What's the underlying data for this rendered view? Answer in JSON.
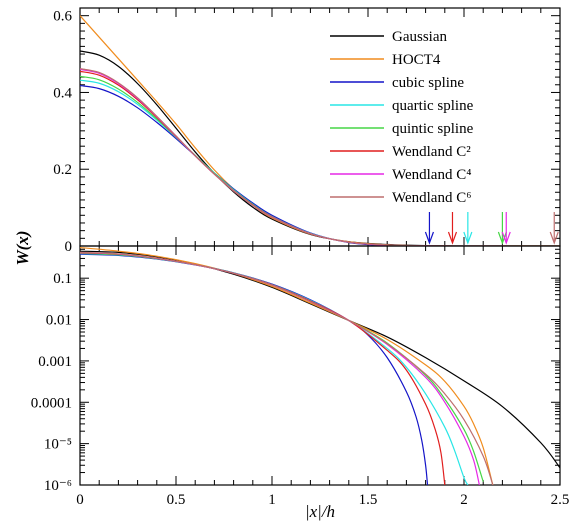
{
  "chart_data": [
    {
      "type": "line",
      "panel": "top",
      "ylabel": "W(x)",
      "xlim": [
        0,
        2.5
      ],
      "ylim": [
        0,
        0.62
      ],
      "yticks": [
        {
          "value": 0,
          "label": "0"
        },
        {
          "value": 0.2,
          "label": "0.2"
        },
        {
          "value": 0.4,
          "label": "0.4"
        },
        {
          "value": 0.6,
          "label": "0.6"
        }
      ],
      "legend_position": "top-right",
      "series": [
        {
          "name": "Gaussian",
          "color": "#000000",
          "x": [
            0,
            0.1,
            0.2,
            0.3,
            0.4,
            0.5,
            0.6,
            0.7,
            0.8,
            0.9,
            1.0,
            1.2,
            1.4,
            1.6,
            1.8,
            2.0,
            2.5
          ],
          "y": [
            0.508,
            0.497,
            0.468,
            0.423,
            0.368,
            0.307,
            0.245,
            0.189,
            0.141,
            0.101,
            0.07,
            0.03,
            0.011,
            0.004,
            0.001,
            0.0,
            0.0
          ]
        },
        {
          "name": "HOCT4",
          "color": "#f08c1e",
          "x": [
            0,
            0.1,
            0.2,
            0.3,
            0.4,
            0.5,
            0.6,
            0.7,
            0.8,
            0.9,
            1.0,
            1.2,
            1.4,
            1.6,
            1.8,
            2.0,
            2.5
          ],
          "y": [
            0.6,
            0.544,
            0.488,
            0.432,
            0.376,
            0.318,
            0.256,
            0.198,
            0.148,
            0.106,
            0.073,
            0.031,
            0.011,
            0.003,
            0.0005,
            0.0,
            0.0
          ]
        },
        {
          "name": "cubic spline",
          "color": "#1414c8",
          "x": [
            0,
            0.1,
            0.2,
            0.3,
            0.4,
            0.5,
            0.6,
            0.7,
            0.8,
            0.9,
            1.0,
            1.2,
            1.4,
            1.6,
            1.8,
            1.82
          ],
          "y": [
            0.418,
            0.41,
            0.39,
            0.36,
            0.322,
            0.28,
            0.235,
            0.19,
            0.149,
            0.112,
            0.08,
            0.034,
            0.009,
            0.001,
            0.0,
            0.0
          ]
        },
        {
          "name": "quartic spline",
          "color": "#28e6e6",
          "x": [
            0,
            0.1,
            0.2,
            0.3,
            0.4,
            0.5,
            0.6,
            0.7,
            0.8,
            0.9,
            1.0,
            1.2,
            1.4,
            1.6,
            1.8,
            2.02
          ],
          "y": [
            0.432,
            0.424,
            0.402,
            0.369,
            0.328,
            0.283,
            0.236,
            0.19,
            0.147,
            0.109,
            0.077,
            0.033,
            0.01,
            0.002,
            0.0,
            0.0
          ]
        },
        {
          "name": "quintic spline",
          "color": "#46d646",
          "x": [
            0,
            0.1,
            0.2,
            0.3,
            0.4,
            0.5,
            0.6,
            0.7,
            0.8,
            0.9,
            1.0,
            1.2,
            1.4,
            1.6,
            1.8,
            2.0,
            2.2
          ],
          "y": [
            0.442,
            0.433,
            0.409,
            0.374,
            0.331,
            0.284,
            0.236,
            0.189,
            0.146,
            0.108,
            0.076,
            0.032,
            0.01,
            0.002,
            0.0003,
            0.0,
            0.0
          ]
        },
        {
          "name": "Wendland C²",
          "color": "#e11e1e",
          "x": [
            0,
            0.1,
            0.2,
            0.3,
            0.4,
            0.5,
            0.6,
            0.7,
            0.8,
            0.9,
            1.0,
            1.2,
            1.4,
            1.6,
            1.8,
            1.94
          ],
          "y": [
            0.455,
            0.445,
            0.419,
            0.381,
            0.335,
            0.285,
            0.235,
            0.187,
            0.144,
            0.107,
            0.076,
            0.032,
            0.01,
            0.002,
            0.0001,
            0.0
          ]
        },
        {
          "name": "Wendland C⁴",
          "color": "#e628e6",
          "x": [
            0,
            0.1,
            0.2,
            0.3,
            0.4,
            0.5,
            0.6,
            0.7,
            0.8,
            0.9,
            1.0,
            1.2,
            1.4,
            1.6,
            1.8,
            2.0,
            2.22
          ],
          "y": [
            0.46,
            0.45,
            0.423,
            0.384,
            0.337,
            0.286,
            0.235,
            0.187,
            0.144,
            0.106,
            0.075,
            0.032,
            0.01,
            0.002,
            0.0003,
            0.0,
            0.0
          ]
        },
        {
          "name": "Wendland C⁶",
          "color": "#be6e6e",
          "x": [
            0,
            0.1,
            0.2,
            0.3,
            0.4,
            0.5,
            0.6,
            0.7,
            0.8,
            0.9,
            1.0,
            1.2,
            1.4,
            1.6,
            1.8,
            2.0,
            2.2,
            2.4,
            2.5
          ],
          "y": [
            0.462,
            0.452,
            0.425,
            0.386,
            0.338,
            0.287,
            0.235,
            0.187,
            0.143,
            0.106,
            0.075,
            0.032,
            0.01,
            0.003,
            0.0005,
            0.0,
            0.0,
            0.0,
            0.0
          ]
        }
      ],
      "arrows": [
        {
          "x": 1.82,
          "color": "#1414c8"
        },
        {
          "x": 1.94,
          "color": "#e11e1e"
        },
        {
          "x": 2.02,
          "color": "#28e6e6"
        },
        {
          "x": 2.2,
          "color": "#46d646"
        },
        {
          "x": 2.22,
          "color": "#e628e6"
        },
        {
          "x": 2.47,
          "color": "#be6e6e"
        }
      ]
    },
    {
      "type": "line",
      "panel": "bottom",
      "xlabel": "|x|/h",
      "xlim": [
        0,
        2.5
      ],
      "ylim": [
        1e-06,
        0.6
      ],
      "yscale": "log",
      "xticks": [
        {
          "value": 0,
          "label": "0"
        },
        {
          "value": 0.5,
          "label": "0.5"
        },
        {
          "value": 1,
          "label": "1"
        },
        {
          "value": 1.5,
          "label": "1.5"
        },
        {
          "value": 2,
          "label": "2"
        },
        {
          "value": 2.5,
          "label": "2.5"
        }
      ],
      "yticks": [
        {
          "value": 0.1,
          "label": "0.1"
        },
        {
          "value": 0.01,
          "label": "0.01"
        },
        {
          "value": 0.001,
          "label": "0.001"
        },
        {
          "value": 0.0001,
          "label": "0.0001"
        },
        {
          "value": 1e-05,
          "label": "10⁻⁵"
        },
        {
          "value": 1e-06,
          "label": "10⁻⁶"
        }
      ],
      "series": [
        {
          "name": "Gaussian",
          "color": "#000000",
          "x": [
            0,
            0.2,
            0.4,
            0.6,
            0.8,
            1.0,
            1.2,
            1.4,
            1.6,
            1.8,
            2.0,
            2.2,
            2.4,
            2.5
          ],
          "y": [
            0.45,
            0.42,
            0.33,
            0.22,
            0.125,
            0.06,
            0.024,
            0.0095,
            0.0038,
            0.0012,
            0.00033,
            7.89e-05,
            1.05e-05,
            2.6e-06
          ]
        },
        {
          "name": "HOCT4",
          "color": "#f08c1e",
          "x": [
            0,
            0.2,
            0.4,
            0.6,
            0.8,
            1.0,
            1.2,
            1.4,
            1.6,
            1.8,
            1.9,
            2.0,
            2.05,
            2.1,
            2.15
          ],
          "y": [
            0.55,
            0.45,
            0.34,
            0.225,
            0.13,
            0.063,
            0.025,
            0.0095,
            0.0033,
            0.0008,
            0.00032,
            8e-05,
            3e-05,
            8e-06,
            1e-06
          ]
        },
        {
          "name": "cubic spline",
          "color": "#1414c8",
          "x": [
            0,
            0.2,
            0.4,
            0.6,
            0.8,
            1.0,
            1.2,
            1.4,
            1.5,
            1.6,
            1.7,
            1.75,
            1.78,
            1.8,
            1.81
          ],
          "y": [
            0.38,
            0.355,
            0.29,
            0.21,
            0.135,
            0.072,
            0.03,
            0.0095,
            0.0042,
            0.0012,
            0.00018,
            4.5e-05,
            1.2e-05,
            3e-06,
            1e-06
          ]
        },
        {
          "name": "quartic spline",
          "color": "#28e6e6",
          "x": [
            0,
            0.2,
            0.4,
            0.6,
            0.8,
            1.0,
            1.2,
            1.4,
            1.6,
            1.7,
            1.8,
            1.9,
            1.95,
            2.0,
            2.02
          ],
          "y": [
            0.395,
            0.365,
            0.295,
            0.212,
            0.134,
            0.07,
            0.029,
            0.0095,
            0.002,
            0.0007,
            0.00016,
            2.5e-05,
            7e-06,
            1.5e-06,
            1e-06
          ]
        },
        {
          "name": "quintic spline",
          "color": "#46d646",
          "x": [
            0,
            0.2,
            0.4,
            0.6,
            0.8,
            1.0,
            1.2,
            1.4,
            1.6,
            1.8,
            1.9,
            2.0,
            2.05,
            2.1
          ],
          "y": [
            0.4,
            0.37,
            0.297,
            0.212,
            0.133,
            0.069,
            0.028,
            0.0095,
            0.0027,
            0.00045,
            0.00012,
            2.2e-05,
            6.5e-06,
            1.2e-06
          ]
        },
        {
          "name": "Wendland C²",
          "color": "#e11e1e",
          "x": [
            0,
            0.2,
            0.4,
            0.6,
            0.8,
            1.0,
            1.2,
            1.4,
            1.6,
            1.7,
            1.8,
            1.85,
            1.88,
            1.9
          ],
          "y": [
            0.41,
            0.38,
            0.3,
            0.212,
            0.132,
            0.069,
            0.028,
            0.0095,
            0.0018,
            0.0006,
            9e-05,
            2.2e-05,
            6e-06,
            1e-06
          ]
        },
        {
          "name": "Wendland C⁴",
          "color": "#e628e6",
          "x": [
            0,
            0.2,
            0.4,
            0.6,
            0.8,
            1.0,
            1.2,
            1.4,
            1.6,
            1.8,
            1.9,
            2.0,
            2.05,
            2.08
          ],
          "y": [
            0.415,
            0.383,
            0.303,
            0.212,
            0.131,
            0.068,
            0.027,
            0.0095,
            0.0025,
            0.0004,
            0.0001,
            1.5e-05,
            4e-06,
            1e-06
          ]
        },
        {
          "name": "Wendland C⁶",
          "color": "#be6e6e",
          "x": [
            0,
            0.2,
            0.4,
            0.6,
            0.8,
            1.0,
            1.2,
            1.4,
            1.6,
            1.8,
            1.9,
            2.0,
            2.1,
            2.15
          ],
          "y": [
            0.42,
            0.386,
            0.305,
            0.212,
            0.131,
            0.068,
            0.027,
            0.0095,
            0.0026,
            0.00048,
            0.00016,
            3.8e-05,
            5e-06,
            1e-06
          ]
        }
      ]
    }
  ]
}
